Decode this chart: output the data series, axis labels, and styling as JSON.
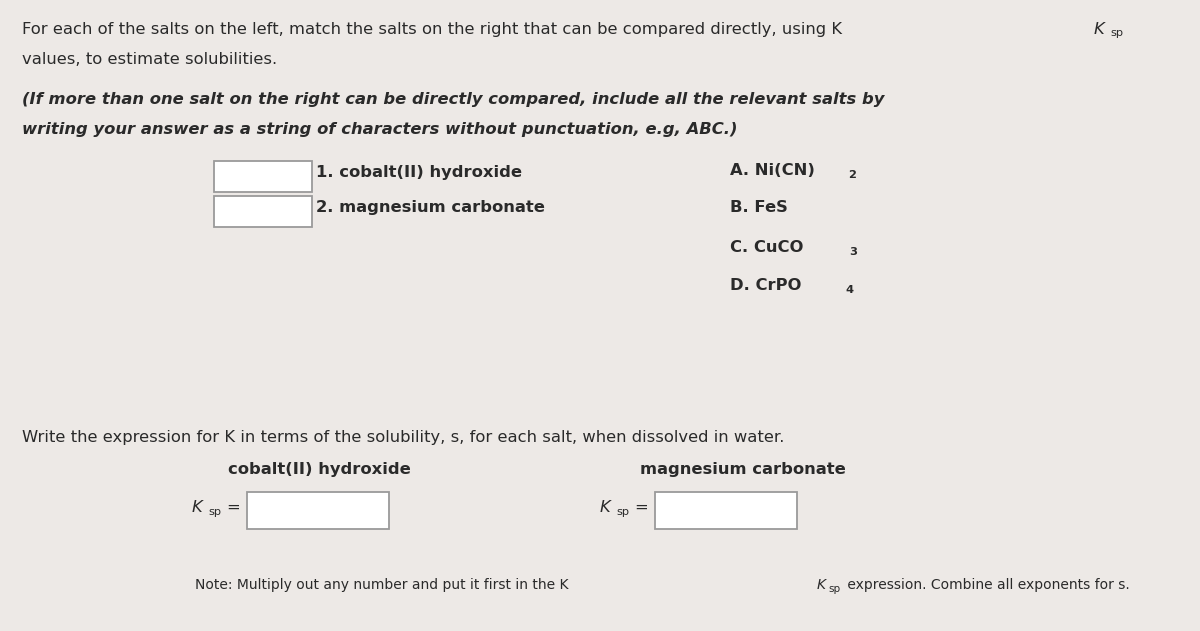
{
  "background_color": "#ede9e6",
  "text_color": "#2a2a2a",
  "fig_width": 12.0,
  "fig_height": 6.31,
  "intro_line1": "For each of the salts on the left, match the salts on the right that can be compared directly, using K",
  "intro_line2": "values, to estimate solubilities.",
  "bold_line1": "(If more than one salt on the right can be directly compared, include all the relevant salts by",
  "bold_line2": "writing your answer as a string of characters without punctuation, e.g, ABC.)",
  "item1_label": "1. cobalt(II) hydroxide",
  "item2_label": "2. magnesium carbonate",
  "option_A_pre": "A. Ni(CN)",
  "option_A_sub": "2",
  "option_B": "B. FeS",
  "option_C_pre": "C. CuCO",
  "option_C_sub": "3",
  "option_D_pre": "D. CrPO",
  "option_D_sub": "4",
  "write_expr_text": "Write the expression for K in terms of the solubility, s, for each salt, when dissolved in water.",
  "cobalt_label": "cobalt(II) hydroxide",
  "magnesium_label": "magnesium carbonate",
  "note_pre": "Note: Multiply out any number and put it first in the K",
  "note_post": " expression. Combine all exponents for s."
}
